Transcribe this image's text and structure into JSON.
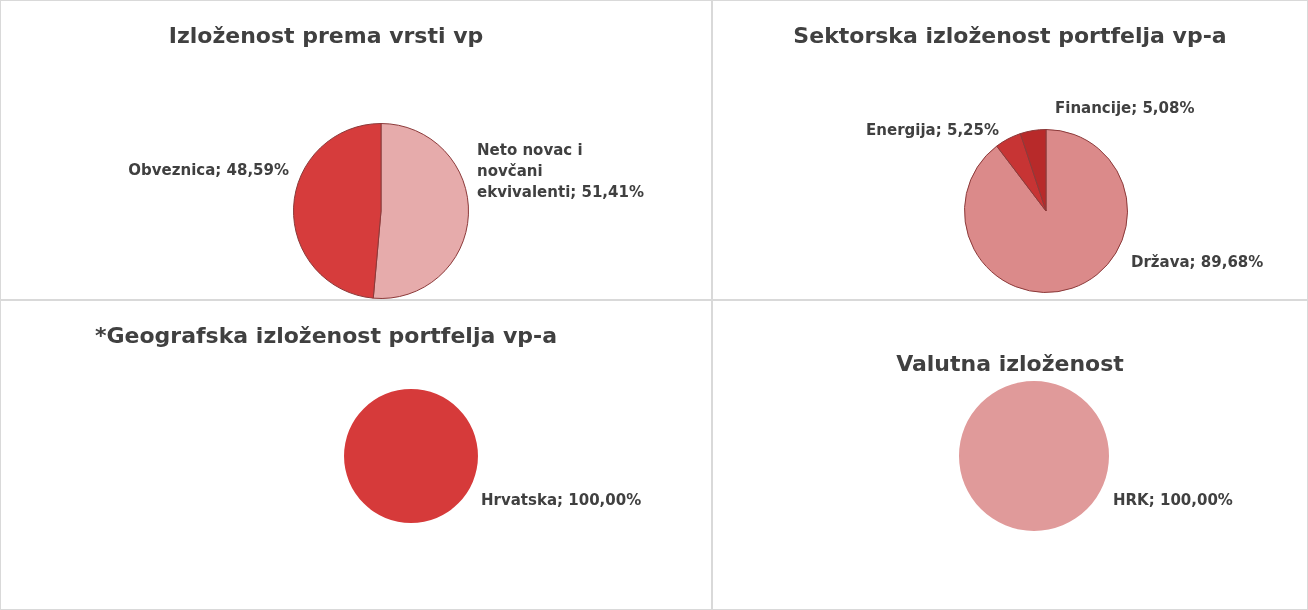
{
  "chart_data": [
    {
      "type": "pie",
      "title": "Izloženost prema vrsti vp",
      "categories": [
        "Neto novac i novčani ekvivalenti",
        "Obveznica"
      ],
      "values": [
        51.41,
        48.59
      ],
      "colors": [
        "#e6abab",
        "#d63c3c"
      ],
      "value_labels": [
        "51,41%",
        "48,59%"
      ],
      "legend": false
    },
    {
      "type": "pie",
      "title": "Sektorska izloženost portfelja vp-a",
      "categories": [
        "Država",
        "Energija",
        "Financije"
      ],
      "values": [
        89.68,
        5.25,
        5.08
      ],
      "colors": [
        "#db8a8a",
        "#c73434",
        "#b82a2a"
      ],
      "value_labels": [
        "89,68%",
        "5,25%",
        "5,08%"
      ],
      "legend": false
    },
    {
      "type": "pie",
      "title": "*Geografska izloženost portfelja vp-a",
      "categories": [
        "Hrvatska"
      ],
      "values": [
        100
      ],
      "colors": [
        "#d63a3a"
      ],
      "value_labels": [
        "100,00%"
      ],
      "legend": false
    },
    {
      "type": "pie",
      "title": "Valutna izloženost",
      "categories": [
        "HRK"
      ],
      "values": [
        100
      ],
      "colors": [
        "#e09a9a"
      ],
      "value_labels": [
        "100,00%"
      ],
      "legend": false
    }
  ]
}
